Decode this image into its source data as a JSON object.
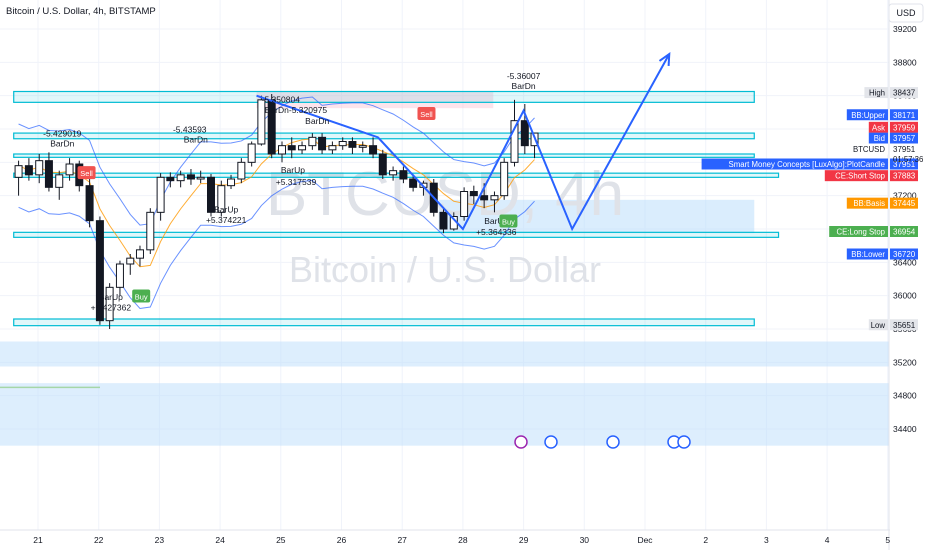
{
  "header": {
    "title": "Bitcoin / U.S. Dollar, 4h, BITSTAMP",
    "currency": "USD"
  },
  "watermark": {
    "line1": "BTCUSD, 4h",
    "line2": "Bitcoin / U.S. Dollar"
  },
  "chart_data": {
    "type": "candlestick",
    "title": "Bitcoin / U.S. Dollar, 4h, BITSTAMP",
    "ylim": [
      34000,
      39400
    ],
    "y_ticks": [
      39200,
      38800,
      38400,
      38000,
      37600,
      37200,
      36800,
      36400,
      36000,
      35600,
      35200,
      34800,
      34400
    ],
    "x_ticks": [
      "21",
      "22",
      "23",
      "24",
      "25",
      "26",
      "27",
      "28",
      "29",
      "30",
      "Dec",
      "2",
      "3",
      "4",
      "5"
    ],
    "x_tick_days": [
      21,
      22,
      23,
      24,
      25,
      26,
      27,
      28,
      29,
      30,
      31,
      32,
      33,
      34,
      35
    ],
    "candles": [
      {
        "d": 20.68,
        "o": 37420,
        "h": 37620,
        "l": 37200,
        "c": 37560
      },
      {
        "d": 20.85,
        "o": 37560,
        "h": 37650,
        "l": 37380,
        "c": 37450
      },
      {
        "d": 21.02,
        "o": 37450,
        "h": 37700,
        "l": 37350,
        "c": 37620
      },
      {
        "d": 21.18,
        "o": 37620,
        "h": 37720,
        "l": 37250,
        "c": 37300
      },
      {
        "d": 21.35,
        "o": 37300,
        "h": 37500,
        "l": 37150,
        "c": 37450
      },
      {
        "d": 21.52,
        "o": 37450,
        "h": 37650,
        "l": 37380,
        "c": 37580
      },
      {
        "d": 21.68,
        "o": 37580,
        "h": 37620,
        "l": 37250,
        "c": 37320
      },
      {
        "d": 21.85,
        "o": 37320,
        "h": 37430,
        "l": 36820,
        "c": 36900
      },
      {
        "d": 22.02,
        "o": 36900,
        "h": 36950,
        "l": 35650,
        "c": 35700
      },
      {
        "d": 22.18,
        "o": 35700,
        "h": 36150,
        "l": 35600,
        "c": 36100
      },
      {
        "d": 22.35,
        "o": 36100,
        "h": 36420,
        "l": 36000,
        "c": 36380
      },
      {
        "d": 22.52,
        "o": 36380,
        "h": 36500,
        "l": 36250,
        "c": 36450
      },
      {
        "d": 22.68,
        "o": 36450,
        "h": 36600,
        "l": 36350,
        "c": 36550
      },
      {
        "d": 22.85,
        "o": 36550,
        "h": 37050,
        "l": 36500,
        "c": 37000
      },
      {
        "d": 23.02,
        "o": 37000,
        "h": 37470,
        "l": 36900,
        "c": 37420
      },
      {
        "d": 23.18,
        "o": 37420,
        "h": 37480,
        "l": 37300,
        "c": 37380
      },
      {
        "d": 23.35,
        "o": 37380,
        "h": 37500,
        "l": 37300,
        "c": 37450
      },
      {
        "d": 23.52,
        "o": 37450,
        "h": 37520,
        "l": 37330,
        "c": 37400
      },
      {
        "d": 23.68,
        "o": 37400,
        "h": 37500,
        "l": 37350,
        "c": 37420
      },
      {
        "d": 23.85,
        "o": 37420,
        "h": 37460,
        "l": 36950,
        "c": 37000
      },
      {
        "d": 24.02,
        "o": 37000,
        "h": 37380,
        "l": 36950,
        "c": 37320
      },
      {
        "d": 24.18,
        "o": 37320,
        "h": 37450,
        "l": 37280,
        "c": 37400
      },
      {
        "d": 24.35,
        "o": 37400,
        "h": 37650,
        "l": 37350,
        "c": 37600
      },
      {
        "d": 24.52,
        "o": 37600,
        "h": 37850,
        "l": 37550,
        "c": 37820
      },
      {
        "d": 24.68,
        "o": 37820,
        "h": 38400,
        "l": 37800,
        "c": 38350
      },
      {
        "d": 24.85,
        "o": 38350,
        "h": 38420,
        "l": 37650,
        "c": 37700
      },
      {
        "d": 25.02,
        "o": 37700,
        "h": 37850,
        "l": 37600,
        "c": 37800
      },
      {
        "d": 25.18,
        "o": 37800,
        "h": 37900,
        "l": 37650,
        "c": 37750
      },
      {
        "d": 25.35,
        "o": 37750,
        "h": 37850,
        "l": 37700,
        "c": 37800
      },
      {
        "d": 25.52,
        "o": 37800,
        "h": 37950,
        "l": 37750,
        "c": 37900
      },
      {
        "d": 25.68,
        "o": 37900,
        "h": 37950,
        "l": 37700,
        "c": 37750
      },
      {
        "d": 25.85,
        "o": 37750,
        "h": 37850,
        "l": 37700,
        "c": 37800
      },
      {
        "d": 26.02,
        "o": 37800,
        "h": 37900,
        "l": 37750,
        "c": 37850
      },
      {
        "d": 26.18,
        "o": 37850,
        "h": 37900,
        "l": 37700,
        "c": 37780
      },
      {
        "d": 26.35,
        "o": 37780,
        "h": 37850,
        "l": 37720,
        "c": 37800
      },
      {
        "d": 26.52,
        "o": 37800,
        "h": 37900,
        "l": 37650,
        "c": 37700
      },
      {
        "d": 26.68,
        "o": 37700,
        "h": 37750,
        "l": 37400,
        "c": 37450
      },
      {
        "d": 26.85,
        "o": 37450,
        "h": 37550,
        "l": 37380,
        "c": 37500
      },
      {
        "d": 27.02,
        "o": 37500,
        "h": 37550,
        "l": 37350,
        "c": 37400
      },
      {
        "d": 27.18,
        "o": 37400,
        "h": 37450,
        "l": 37250,
        "c": 37300
      },
      {
        "d": 27.35,
        "o": 37300,
        "h": 37380,
        "l": 37200,
        "c": 37350
      },
      {
        "d": 27.52,
        "o": 37350,
        "h": 37400,
        "l": 36950,
        "c": 37000
      },
      {
        "d": 27.68,
        "o": 37000,
        "h": 37050,
        "l": 36750,
        "c": 36800
      },
      {
        "d": 27.85,
        "o": 36800,
        "h": 37000,
        "l": 36780,
        "c": 36950
      },
      {
        "d": 28.02,
        "o": 36950,
        "h": 37300,
        "l": 36900,
        "c": 37250
      },
      {
        "d": 28.18,
        "o": 37250,
        "h": 37320,
        "l": 37100,
        "c": 37200
      },
      {
        "d": 28.35,
        "o": 37200,
        "h": 37350,
        "l": 37050,
        "c": 37150
      },
      {
        "d": 28.52,
        "o": 37150,
        "h": 37250,
        "l": 37000,
        "c": 37200
      },
      {
        "d": 28.68,
        "o": 37200,
        "h": 37650,
        "l": 37150,
        "c": 37600
      },
      {
        "d": 28.85,
        "o": 37600,
        "h": 38350,
        "l": 37550,
        "c": 38100
      },
      {
        "d": 29.02,
        "o": 38100,
        "h": 38300,
        "l": 37700,
        "c": 37800
      },
      {
        "d": 29.18,
        "o": 37800,
        "h": 37951,
        "l": 37650,
        "c": 37951
      }
    ],
    "zones": [
      {
        "top": 38450,
        "bottom": 38320,
        "d0": 20.6,
        "d1": 32.8,
        "color": "#00bcd4"
      },
      {
        "top": 37951,
        "bottom": 37883,
        "d0": 20.6,
        "d1": 32.8,
        "color": "#00bcd4"
      },
      {
        "top": 37700,
        "bottom": 37660,
        "d0": 20.6,
        "d1": 32.8,
        "color": "#00bcd4"
      },
      {
        "top": 37470,
        "bottom": 37420,
        "d0": 20.6,
        "d1": 33.2,
        "color": "#00bcd4"
      },
      {
        "top": 36760,
        "bottom": 36700,
        "d0": 20.6,
        "d1": 33.2,
        "color": "#00bcd4"
      },
      {
        "top": 35720,
        "bottom": 35640,
        "d0": 20.6,
        "d1": 32.8,
        "color": "#00bcd4"
      }
    ],
    "projection": [
      [
        24.6,
        38400
      ],
      [
        26.6,
        37900
      ],
      [
        28.0,
        36800
      ],
      [
        29.0,
        38220
      ],
      [
        29.8,
        36800
      ],
      [
        31.4,
        38900
      ]
    ],
    "annotations": [
      {
        "text": "-5.36007",
        "d": 29.0,
        "y": 38600
      },
      {
        "text": "BarDn",
        "d": 29.0,
        "y": 38480
      },
      {
        "text": "-5.350804",
        "d": 25.0,
        "y": 38320
      },
      {
        "text": "BarDn-5.320975",
        "d": 25.25,
        "y": 38190
      },
      {
        "text": "BarDn",
        "d": 25.6,
        "y": 38060
      },
      {
        "text": "-5.43593",
        "d": 23.5,
        "y": 37960
      },
      {
        "text": "BarDn",
        "d": 23.6,
        "y": 37840
      },
      {
        "text": "-5.429019",
        "d": 21.4,
        "y": 37910
      },
      {
        "text": "BarDn",
        "d": 21.4,
        "y": 37790
      },
      {
        "text": "BarUp",
        "d": 25.2,
        "y": 37470
      },
      {
        "text": "+5.317539",
        "d": 25.25,
        "y": 37330
      },
      {
        "text": "BarUp",
        "d": 24.1,
        "y": 37000
      },
      {
        "text": "+5.374221",
        "d": 24.1,
        "y": 36870
      },
      {
        "text": "BarUp",
        "d": 28.55,
        "y": 36860
      },
      {
        "text": "+5.364336",
        "d": 28.55,
        "y": 36730
      },
      {
        "text": "BarUp",
        "d": 22.2,
        "y": 35950
      },
      {
        "text": "+5.427362",
        "d": 22.2,
        "y": 35820
      }
    ],
    "signals": [
      {
        "text": "Sell",
        "d": 21.8,
        "y": 37470,
        "color": "#f05350"
      },
      {
        "text": "Sell",
        "d": 27.4,
        "y": 38180,
        "color": "#f05350"
      },
      {
        "text": "Buy",
        "d": 22.7,
        "y": 35990,
        "color": "#4caf50"
      },
      {
        "text": "Buy",
        "d": 28.75,
        "y": 36890,
        "color": "#4caf50"
      }
    ],
    "price_labels": [
      {
        "name": "High",
        "value": "38437",
        "y": 38437,
        "color": "#e3e5ea",
        "text_color": "#131722"
      },
      {
        "name": "BB:Upper",
        "value": "38171",
        "y": 38171,
        "color": "#2962ff",
        "text_color": "#ffffff"
      },
      {
        "name": "Ask",
        "value": "37959",
        "y": 38020,
        "color": "#f23645",
        "text_color": "#ffffff"
      },
      {
        "name": "Bid",
        "value": "37957",
        "y": 37890,
        "color": "#2962ff",
        "text_color": "#ffffff"
      },
      {
        "name": "BTCUSD",
        "value": "37951",
        "y": 37760,
        "color": "#ffffff",
        "text_color": "#131722"
      },
      {
        "name": "Smart Money Concepts [LuxAlgo]:PlotCandle",
        "value": "37951",
        "y": 37580,
        "color": "#2962ff",
        "text_color": "#ffffff"
      },
      {
        "name": "CE:Short Stop",
        "value": "37883",
        "y": 37440,
        "color": "#f23645",
        "text_color": "#ffffff"
      },
      {
        "name": "BB:Basis",
        "value": "37445",
        "y": 37110,
        "color": "#ff9800",
        "text_color": "#ffffff"
      },
      {
        "name": "CE:Long Stop",
        "value": "36954",
        "y": 36770,
        "color": "#4caf50",
        "text_color": "#ffffff"
      },
      {
        "name": "BB:Lower",
        "value": "36720",
        "y": 36500,
        "color": "#2962ff",
        "text_color": "#ffffff"
      },
      {
        "name": "Low",
        "value": "35651",
        "y": 35651,
        "color": "#e3e5ea",
        "text_color": "#131722"
      }
    ],
    "countdown": "01:57:36",
    "grid": true
  }
}
